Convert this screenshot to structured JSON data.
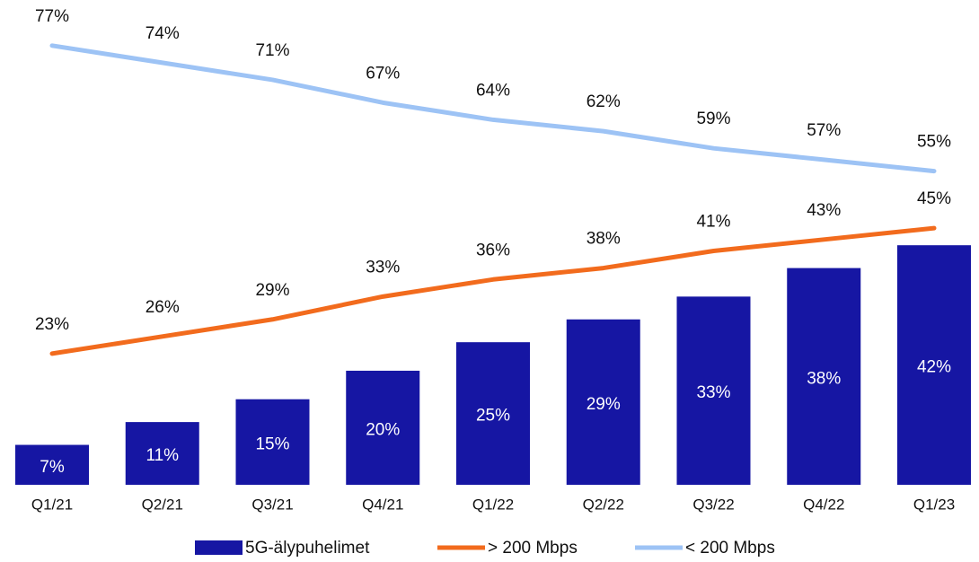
{
  "chart_data": {
    "type": "bar",
    "categories": [
      "Q1/21",
      "Q2/21",
      "Q3/21",
      "Q4/21",
      "Q1/22",
      "Q2/22",
      "Q3/22",
      "Q4/22",
      "Q1/23"
    ],
    "ylim": [
      0,
      85
    ],
    "legend": "bottom",
    "series": [
      {
        "name": "5G-älypuhelimet",
        "type": "bar",
        "color": "#1616a3",
        "values": [
          7,
          11,
          15,
          20,
          25,
          29,
          33,
          38,
          42
        ],
        "value_labels": [
          "7%",
          "11%",
          "15%",
          "20%",
          "25%",
          "29%",
          "33%",
          "38%",
          "42%"
        ]
      },
      {
        "name": "> 200 Mbps",
        "type": "line",
        "color": "#f26b1d",
        "values": [
          23,
          26,
          29,
          33,
          36,
          38,
          41,
          43,
          45
        ],
        "value_labels": [
          "23%",
          "26%",
          "29%",
          "33%",
          "36%",
          "38%",
          "41%",
          "43%",
          "45%"
        ]
      },
      {
        "name": "< 200 Mbps",
        "type": "line",
        "color": "#9dc3f5",
        "values": [
          77,
          74,
          71,
          67,
          64,
          62,
          59,
          57,
          55
        ],
        "value_labels": [
          "77%",
          "74%",
          "71%",
          "67%",
          "64%",
          "62%",
          "59%",
          "57%",
          "55%"
        ]
      }
    ]
  }
}
